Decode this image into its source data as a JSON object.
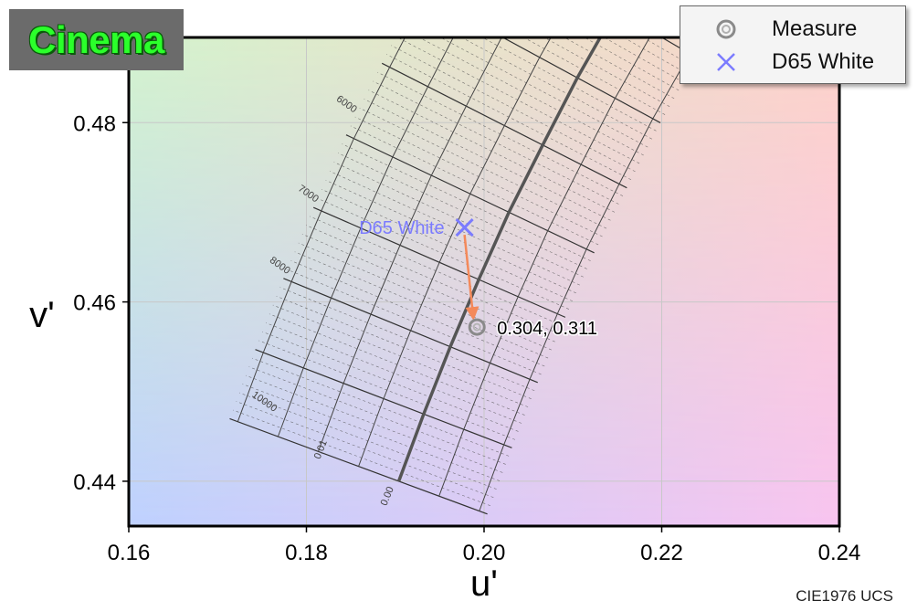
{
  "badge": {
    "text": "Cinema",
    "color": "#2bff2b"
  },
  "footer": {
    "text": "CIE1976 UCS"
  },
  "legend": {
    "items": [
      {
        "label": "Measure",
        "icon": "circle-target-icon",
        "color": "#888888"
      },
      {
        "label": "D65 White",
        "icon": "x-cross-icon",
        "color": "#7b7bff"
      }
    ]
  },
  "chart_data": {
    "type": "scatter",
    "title": "",
    "xlabel": "u'",
    "ylabel": "v'",
    "xlim": [
      0.16,
      0.24
    ],
    "ylim": [
      0.435,
      0.4895
    ],
    "xticks": [
      "0.16",
      "0.18",
      "0.20",
      "0.22",
      "0.24"
    ],
    "yticks": [
      "0.44",
      "0.46",
      "0.48"
    ],
    "grid": true,
    "legend_position": "top-right",
    "points": [
      {
        "name": "D65 White",
        "u": 0.1978,
        "v": 0.4683,
        "marker": "x",
        "color": "#7b7bff",
        "label": "D65 White"
      },
      {
        "name": "Measure",
        "u": 0.1992,
        "v": 0.4572,
        "marker": "ring",
        "color": "#888888",
        "label": "0.304,  0.311"
      }
    ],
    "arrow": {
      "from": "D65 White",
      "to": "Measure",
      "color": "#f4895a"
    },
    "planckian_locus": {
      "u": [
        0.1904,
        0.1932,
        0.1962,
        0.1994,
        0.2028,
        0.2066,
        0.2105,
        0.2148,
        0.2193
      ],
      "v": [
        0.44,
        0.4475,
        0.455,
        0.4625,
        0.47,
        0.4775,
        0.485,
        0.4925,
        0.5
      ],
      "color": "#555555"
    },
    "cct_labels": [
      {
        "text": "6000",
        "u": 0.1833,
        "v": 0.4825
      },
      {
        "text": "7000",
        "u": 0.179,
        "v": 0.4725
      },
      {
        "text": "8000",
        "u": 0.1758,
        "v": 0.4645
      },
      {
        "text": "10000",
        "u": 0.1738,
        "v": 0.4495
      }
    ],
    "duv_labels": [
      {
        "text": "0.01",
        "u": 0.1815,
        "v": 0.4424
      },
      {
        "text": "0.00",
        "u": 0.189,
        "v": 0.4372
      }
    ],
    "background_corners": {
      "top_left": "#d3f3cd",
      "top_right": "#fdd2c8",
      "bottom_left": "#bfd1ff",
      "bottom_right": "#f8c5f0"
    }
  }
}
